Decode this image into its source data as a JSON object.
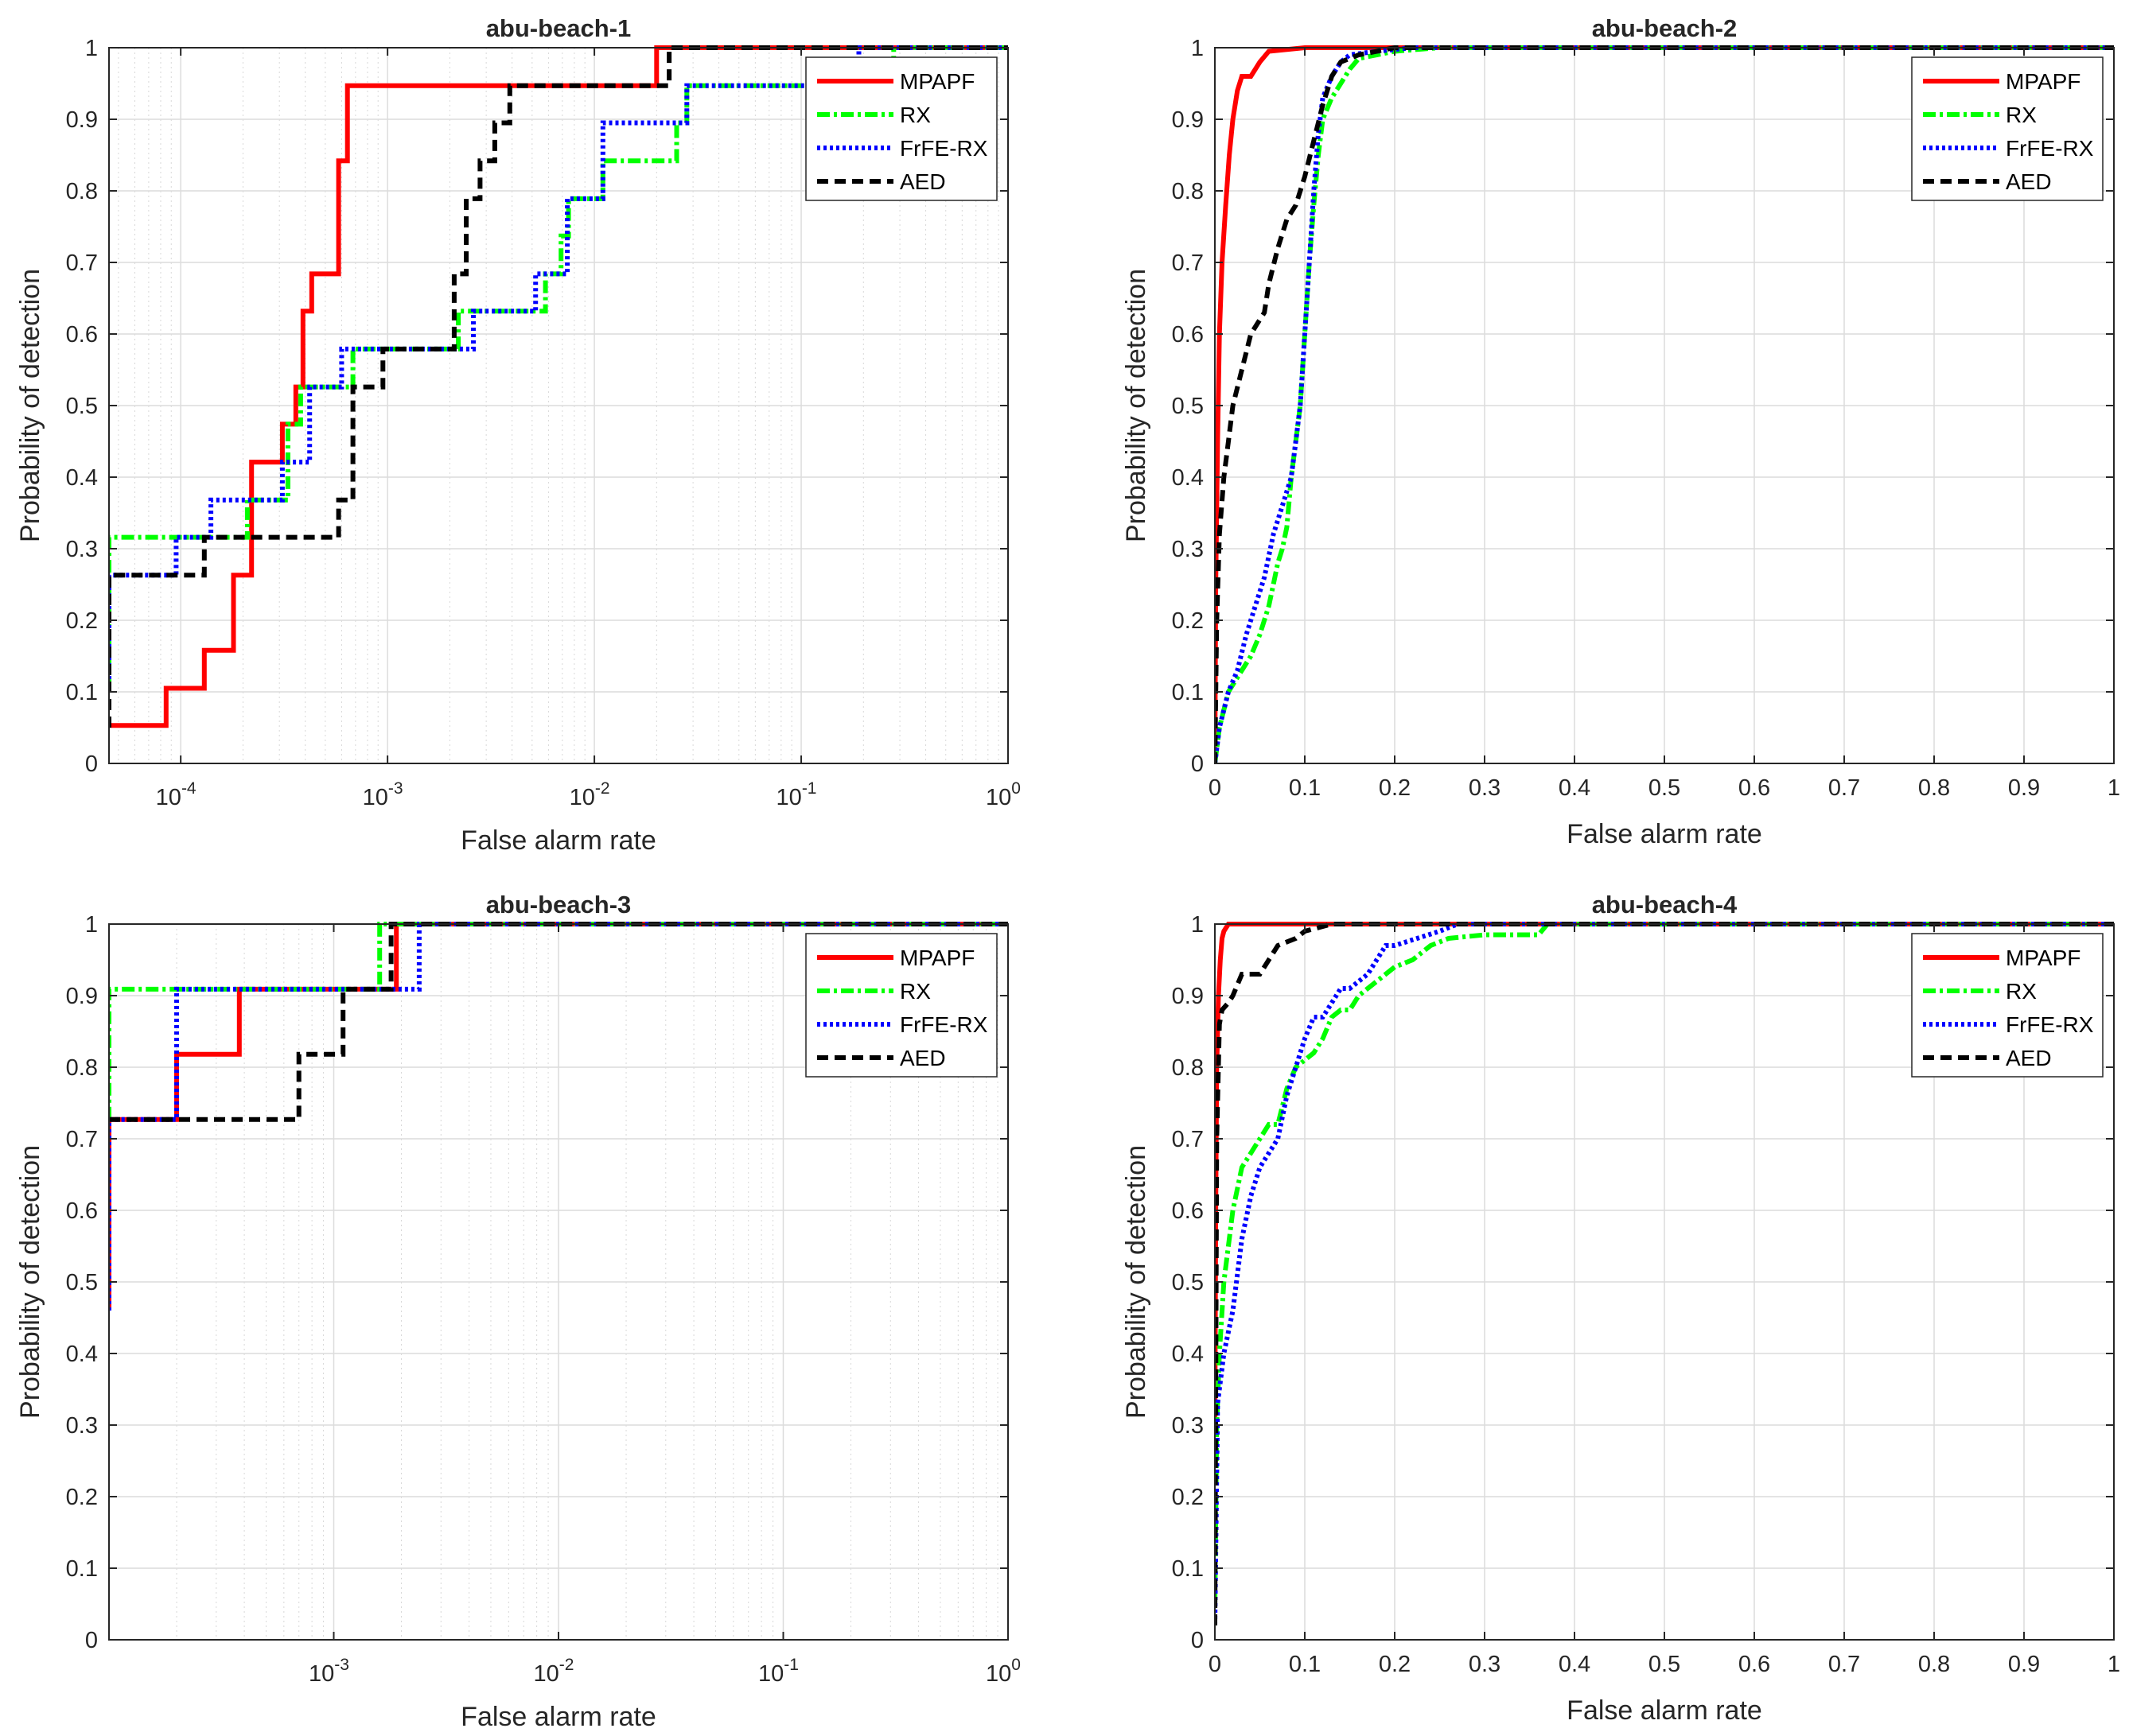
{
  "figure": {
    "description_none": ""
  },
  "series_styles": {
    "MPAPF": {
      "color": "#ff0000",
      "dash": "none"
    },
    "RX": {
      "color": "#00ff00",
      "dash": "16,5,4,5"
    },
    "FrFE-RX": {
      "color": "#0000ff",
      "dash": "4,4"
    },
    "AED": {
      "color": "#000000",
      "dash": "14,8"
    }
  },
  "chart_data": [
    {
      "type": "line",
      "title": "abu-beach-1",
      "xlabel": "False alarm rate",
      "ylabel": "Probability of detection",
      "xscale": "log",
      "xlim": [
        4.5e-05,
        1
      ],
      "ylim": [
        0,
        1
      ],
      "xticks": [
        0.0001,
        0.001,
        0.01,
        0.1,
        1
      ],
      "xtick_labels": [
        [
          "10",
          "-4"
        ],
        [
          "10",
          "-3"
        ],
        [
          "10",
          "-2"
        ],
        [
          "10",
          "-1"
        ],
        [
          "10",
          "0"
        ]
      ],
      "yticks": [
        0,
        0.1,
        0.2,
        0.3,
        0.4,
        0.5,
        0.6,
        0.7,
        0.8,
        0.9,
        1
      ],
      "ytick_labels": [
        "0",
        "0.1",
        "0.2",
        "0.3",
        "0.4",
        "0.5",
        "0.6",
        "0.7",
        "0.8",
        "0.9",
        "1"
      ],
      "grid": true,
      "legend": "top-right",
      "series": [
        {
          "name": "MPAPF",
          "x": [
            4.5e-05,
            8.5e-05,
            8.5e-05,
            0.00013,
            0.00013,
            0.00018,
            0.00018,
            0.00022,
            0.00022,
            0.00031,
            0.00031,
            0.00036,
            0.00036,
            0.00039,
            0.00039,
            0.00043,
            0.00043,
            0.00058,
            0.00058,
            0.00064,
            0.00064,
            0.02,
            0.02,
            1
          ],
          "y": [
            0.053,
            0.053,
            0.105,
            0.105,
            0.158,
            0.158,
            0.263,
            0.263,
            0.421,
            0.421,
            0.474,
            0.474,
            0.526,
            0.526,
            0.632,
            0.632,
            0.684,
            0.684,
            0.842,
            0.842,
            0.947,
            0.947,
            1,
            1
          ]
        },
        {
          "name": "RX",
          "x": [
            4.5e-05,
            4.5e-05,
            0.00021,
            0.00021,
            0.00033,
            0.00033,
            0.00038,
            0.00038,
            0.00068,
            0.00068,
            0.0022,
            0.0022,
            0.0058,
            0.0058,
            0.0069,
            0.0069,
            0.0075,
            0.0075,
            0.011,
            0.011,
            0.013,
            0.013,
            0.025,
            0.025,
            0.028,
            0.028,
            0.28,
            0.28,
            1
          ],
          "y": [
            0.1,
            0.316,
            0.316,
            0.368,
            0.368,
            0.474,
            0.474,
            0.526,
            0.526,
            0.579,
            0.579,
            0.632,
            0.632,
            0.684,
            0.684,
            0.737,
            0.737,
            0.789,
            0.789,
            0.842,
            0.842,
            0.842,
            0.842,
            0.895,
            0.895,
            0.947,
            0.947,
            1,
            1
          ]
        },
        {
          "name": "FrFE-RX",
          "x": [
            4.5e-05,
            4.5e-05,
            9.5e-05,
            9.5e-05,
            0.00014,
            0.00014,
            0.00031,
            0.00031,
            0.00042,
            0.00042,
            0.0006,
            0.0006,
            0.0026,
            0.0026,
            0.0052,
            0.0052,
            0.0074,
            0.0074,
            0.011,
            0.011,
            0.022,
            0.022,
            0.028,
            0.028,
            0.19,
            0.19,
            1
          ],
          "y": [
            0.1,
            0.263,
            0.263,
            0.316,
            0.316,
            0.368,
            0.368,
            0.421,
            0.421,
            0.526,
            0.526,
            0.579,
            0.579,
            0.632,
            0.632,
            0.684,
            0.684,
            0.789,
            0.789,
            0.895,
            0.895,
            0.895,
            0.895,
            0.947,
            0.947,
            1,
            1
          ]
        },
        {
          "name": "AED",
          "x": [
            4.5e-05,
            4.5e-05,
            0.00013,
            0.00013,
            0.00058,
            0.00058,
            0.00068,
            0.00068,
            0.00095,
            0.00095,
            0.0021,
            0.0021,
            0.0024,
            0.0024,
            0.0028,
            0.0028,
            0.0033,
            0.0033,
            0.0039,
            0.0039,
            0.023,
            0.023,
            1
          ],
          "y": [
            0.05,
            0.263,
            0.263,
            0.316,
            0.316,
            0.368,
            0.368,
            0.526,
            0.526,
            0.579,
            0.579,
            0.684,
            0.684,
            0.789,
            0.789,
            0.842,
            0.842,
            0.895,
            0.895,
            0.947,
            0.947,
            1,
            1
          ]
        }
      ]
    },
    {
      "type": "line",
      "title": "abu-beach-2",
      "xlabel": "False alarm rate",
      "ylabel": "Probability of detection",
      "xscale": "linear",
      "xlim": [
        0,
        1
      ],
      "ylim": [
        0,
        1
      ],
      "xticks": [
        0,
        0.1,
        0.2,
        0.3,
        0.4,
        0.5,
        0.6,
        0.7,
        0.8,
        0.9,
        1
      ],
      "xtick_labels": [
        "0",
        "0.1",
        "0.2",
        "0.3",
        "0.4",
        "0.5",
        "0.6",
        "0.7",
        "0.8",
        "0.9",
        "1"
      ],
      "yticks": [
        0,
        0.1,
        0.2,
        0.3,
        0.4,
        0.5,
        0.6,
        0.7,
        0.8,
        0.9,
        1
      ],
      "ytick_labels": [
        "0",
        "0.1",
        "0.2",
        "0.3",
        "0.4",
        "0.5",
        "0.6",
        "0.7",
        "0.8",
        "0.9",
        "1"
      ],
      "grid": true,
      "legend": "top-right",
      "series": [
        {
          "name": "MPAPF",
          "x": [
            0,
            0.001,
            0.003,
            0.005,
            0.008,
            0.012,
            0.016,
            0.02,
            0.025,
            0.03,
            0.04,
            0.05,
            0.06,
            0.1,
            0.2,
            1
          ],
          "y": [
            0,
            0.25,
            0.45,
            0.6,
            0.7,
            0.78,
            0.85,
            0.9,
            0.94,
            0.96,
            0.96,
            0.98,
            0.995,
            1,
            1,
            1
          ]
        },
        {
          "name": "RX",
          "x": [
            0,
            0.005,
            0.015,
            0.03,
            0.04,
            0.05,
            0.06,
            0.065,
            0.07,
            0.075,
            0.08,
            0.085,
            0.09,
            0.095,
            0.1,
            0.105,
            0.11,
            0.115,
            0.12,
            0.13,
            0.14,
            0.15,
            0.16,
            0.18,
            0.2,
            0.25,
            1
          ],
          "y": [
            0,
            0.05,
            0.1,
            0.13,
            0.15,
            0.18,
            0.22,
            0.25,
            0.28,
            0.3,
            0.33,
            0.4,
            0.45,
            0.5,
            0.6,
            0.7,
            0.78,
            0.85,
            0.9,
            0.93,
            0.95,
            0.97,
            0.985,
            0.99,
            0.995,
            1,
            1
          ]
        },
        {
          "name": "FrFE-RX",
          "x": [
            0,
            0.005,
            0.015,
            0.025,
            0.035,
            0.045,
            0.055,
            0.065,
            0.075,
            0.085,
            0.09,
            0.095,
            0.1,
            0.105,
            0.11,
            0.115,
            0.12,
            0.13,
            0.14,
            0.15,
            0.18,
            0.22,
            1
          ],
          "y": [
            0,
            0.05,
            0.1,
            0.13,
            0.18,
            0.22,
            0.26,
            0.32,
            0.36,
            0.4,
            0.45,
            0.5,
            0.6,
            0.7,
            0.8,
            0.88,
            0.93,
            0.96,
            0.98,
            0.99,
            0.995,
            1,
            1
          ]
        },
        {
          "name": "AED",
          "x": [
            0,
            0.002,
            0.005,
            0.01,
            0.015,
            0.02,
            0.03,
            0.04,
            0.05,
            0.055,
            0.06,
            0.07,
            0.08,
            0.09,
            0.1,
            0.11,
            0.12,
            0.13,
            0.14,
            0.16,
            0.2,
            1
          ],
          "y": [
            0,
            0.2,
            0.32,
            0.4,
            0.45,
            0.5,
            0.55,
            0.6,
            0.62,
            0.63,
            0.67,
            0.72,
            0.76,
            0.78,
            0.82,
            0.87,
            0.92,
            0.96,
            0.98,
            0.99,
            1,
            1
          ]
        }
      ]
    },
    {
      "type": "line",
      "title": "abu-beach-3",
      "xlabel": "False alarm rate",
      "ylabel": "Probability of detection",
      "xscale": "log",
      "xlim": [
        0.0001,
        1
      ],
      "ylim": [
        0,
        1
      ],
      "xticks": [
        0.001,
        0.01,
        0.1,
        1
      ],
      "xtick_labels": [
        [
          "10",
          "-3"
        ],
        [
          "10",
          "-2"
        ],
        [
          "10",
          "-1"
        ],
        [
          "10",
          "0"
        ]
      ],
      "yticks": [
        0,
        0.1,
        0.2,
        0.3,
        0.4,
        0.5,
        0.6,
        0.7,
        0.8,
        0.9,
        1
      ],
      "ytick_labels": [
        "0",
        "0.1",
        "0.2",
        "0.3",
        "0.4",
        "0.5",
        "0.6",
        "0.7",
        "0.8",
        "0.9",
        "1"
      ],
      "grid": true,
      "legend": "top-right",
      "series": [
        {
          "name": "MPAPF",
          "x": [
            0.0001,
            0.0001,
            0.0002,
            0.0002,
            0.00038,
            0.00038,
            0.0019,
            0.0019,
            1
          ],
          "y": [
            0.46,
            0.727,
            0.727,
            0.818,
            0.818,
            0.909,
            0.909,
            1,
            1
          ]
        },
        {
          "name": "RX",
          "x": [
            0.0001,
            0.0001,
            0.0016,
            0.0016,
            1
          ],
          "y": [
            0.727,
            0.909,
            0.909,
            1,
            1
          ]
        },
        {
          "name": "FrFE-RX",
          "x": [
            0.0001,
            0.0001,
            0.0002,
            0.0002,
            0.0024,
            0.0024,
            1
          ],
          "y": [
            0.46,
            0.727,
            0.727,
            0.909,
            0.909,
            1,
            1
          ]
        },
        {
          "name": "AED",
          "x": [
            0.0001,
            0.0007,
            0.0007,
            0.0011,
            0.0011,
            0.0018,
            0.0018,
            1
          ],
          "y": [
            0.727,
            0.727,
            0.818,
            0.818,
            0.909,
            0.909,
            1,
            1
          ]
        }
      ]
    },
    {
      "type": "line",
      "title": "abu-beach-4",
      "xlabel": "False alarm rate",
      "ylabel": "Probability of detection",
      "xscale": "linear",
      "xlim": [
        0,
        1
      ],
      "ylim": [
        0,
        1
      ],
      "xticks": [
        0,
        0.1,
        0.2,
        0.3,
        0.4,
        0.5,
        0.6,
        0.7,
        0.8,
        0.9,
        1
      ],
      "xtick_labels": [
        "0",
        "0.1",
        "0.2",
        "0.3",
        "0.4",
        "0.5",
        "0.6",
        "0.7",
        "0.8",
        "0.9",
        "1"
      ],
      "yticks": [
        0,
        0.1,
        0.2,
        0.3,
        0.4,
        0.5,
        0.6,
        0.7,
        0.8,
        0.9,
        1
      ],
      "ytick_labels": [
        "0",
        "0.1",
        "0.2",
        "0.3",
        "0.4",
        "0.5",
        "0.6",
        "0.7",
        "0.8",
        "0.9",
        "1"
      ],
      "grid": true,
      "legend": "top-right",
      "series": [
        {
          "name": "MPAPF",
          "x": [
            0,
            0.001,
            0.002,
            0.004,
            0.006,
            0.008,
            0.01,
            0.015,
            0.02,
            1
          ],
          "y": [
            0.3,
            0.6,
            0.8,
            0.9,
            0.95,
            0.98,
            0.99,
            1,
            1,
            1
          ]
        },
        {
          "name": "RX",
          "x": [
            0,
            0.002,
            0.005,
            0.01,
            0.02,
            0.03,
            0.04,
            0.05,
            0.06,
            0.07,
            0.08,
            0.09,
            0.1,
            0.11,
            0.12,
            0.13,
            0.14,
            0.15,
            0.16,
            0.17,
            0.18,
            0.19,
            0.2,
            0.22,
            0.24,
            0.26,
            0.3,
            0.36,
            0.37,
            1
          ],
          "y": [
            0.05,
            0.3,
            0.4,
            0.5,
            0.6,
            0.66,
            0.68,
            0.7,
            0.72,
            0.72,
            0.77,
            0.8,
            0.81,
            0.82,
            0.84,
            0.87,
            0.88,
            0.88,
            0.9,
            0.91,
            0.92,
            0.93,
            0.94,
            0.95,
            0.97,
            0.98,
            0.985,
            0.985,
            1,
            1
          ]
        },
        {
          "name": "FrFE-RX",
          "x": [
            0,
            0.003,
            0.006,
            0.01,
            0.02,
            0.03,
            0.04,
            0.05,
            0.06,
            0.07,
            0.08,
            0.09,
            0.1,
            0.11,
            0.12,
            0.13,
            0.14,
            0.15,
            0.16,
            0.17,
            0.18,
            0.19,
            0.2,
            0.25,
            0.27,
            1
          ],
          "y": [
            0.02,
            0.33,
            0.36,
            0.4,
            0.46,
            0.56,
            0.62,
            0.66,
            0.68,
            0.7,
            0.76,
            0.8,
            0.84,
            0.87,
            0.87,
            0.89,
            0.91,
            0.91,
            0.92,
            0.93,
            0.95,
            0.97,
            0.97,
            0.99,
            1,
            1
          ]
        },
        {
          "name": "AED",
          "x": [
            0,
            0.002,
            0.005,
            0.008,
            0.015,
            0.02,
            0.03,
            0.05,
            0.06,
            0.07,
            0.09,
            0.1,
            0.13,
            1
          ],
          "y": [
            0.02,
            0.7,
            0.86,
            0.88,
            0.89,
            0.9,
            0.93,
            0.93,
            0.95,
            0.97,
            0.98,
            0.99,
            1,
            1
          ]
        }
      ]
    }
  ]
}
